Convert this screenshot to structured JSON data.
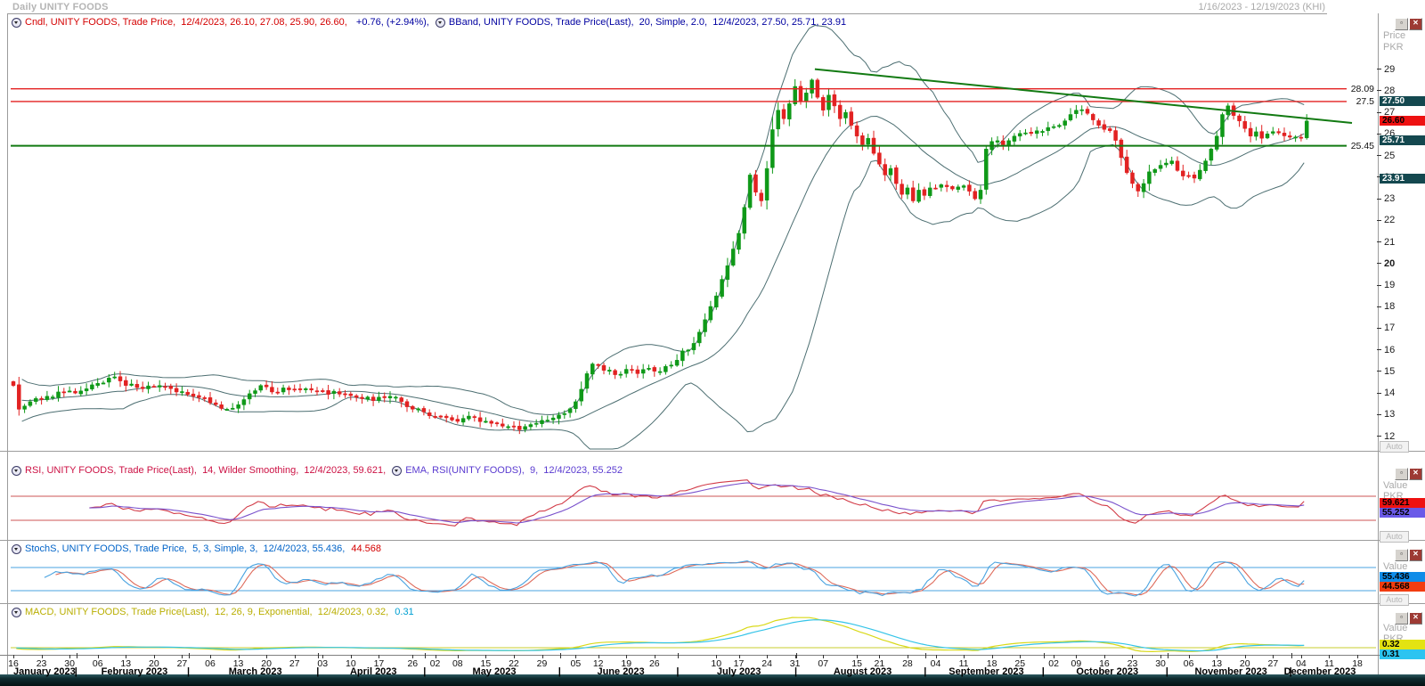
{
  "window": {
    "title": "Daily UNITY FOODS",
    "date_range": "1/16/2023 - 12/19/2023 (KHI)"
  },
  "axis": {
    "price_label": "Price",
    "value_label": "Value",
    "currency": "PKR",
    "auto_label": "Auto"
  },
  "icons": {
    "collapse": "indicator-collapse-icon",
    "restore": "restore-icon",
    "close": "close-icon"
  },
  "panels": {
    "main": {
      "candle_text": "Cndl, UNITY FOODS, Trade Price,  12/4/2023, 26.10, 27.08, 25.90, 26.60,  ",
      "change_text": "+0.76, (+2.94%), ",
      "bband_text": "BBand, UNITY FOODS, Trade Price(Last),  20, Simple, 2.0,  12/4/2023, 27.50, 25.71, 23.91",
      "badges": [
        {
          "text": "27.50",
          "value": 27.5,
          "bg": "#14484f",
          "fg": "#ffffff"
        },
        {
          "text": "26.60",
          "value": 26.6,
          "bg": "#ee1111",
          "fg": "#000000"
        },
        {
          "text": "25.71",
          "value": 25.71,
          "bg": "#14484f",
          "fg": "#ffffff"
        },
        {
          "text": "23.91",
          "value": 23.91,
          "bg": "#14484f",
          "fg": "#ffffff"
        }
      ]
    },
    "rsi": {
      "rsi_text": "RSI, UNITY FOODS, Trade Price(Last),  14, Wilder Smoothing,  12/4/2023, 59.621, ",
      "ema_text": "EMA, RSI(UNITY FOODS),  9,  12/4/2023, 55.252",
      "badges": [
        {
          "text": "59.621",
          "value": 59.621,
          "bg": "#ee1111",
          "fg": "#000000"
        },
        {
          "text": "55.252",
          "value": 55.252,
          "bg": "#6a5ae8",
          "fg": "#000000"
        }
      ]
    },
    "stoch": {
      "stoch_text": "StochS, UNITY FOODS, Trade Price,  5, 3, Simple, 3,  12/4/2023, 55.436, ",
      "d_value_text": "44.568",
      "badges": [
        {
          "text": "55.436",
          "value": 55.436,
          "bg": "#0f8ce8",
          "fg": "#000000"
        },
        {
          "text": "44.568",
          "value": 44.568,
          "bg": "#f23d10",
          "fg": "#000000"
        }
      ]
    },
    "macd": {
      "macd_text": "MACD, UNITY FOODS, Trade Price(Last),  12, 26, 9, Exponential,  12/4/2023, 0.32, ",
      "signal_value_text": "0.31",
      "badges": [
        {
          "text": "0.32",
          "value": 0.32,
          "bg": "#e3e312",
          "fg": "#000000"
        },
        {
          "text": "0.31",
          "value": 0.31,
          "bg": "#2cc4f0",
          "fg": "#000000"
        }
      ]
    }
  },
  "chart_data": {
    "type": "candlestick",
    "symbol": "UNITY FOODS",
    "interval": "Daily",
    "currency": "PKR",
    "x_range": {
      "start_label": "1/16/2023",
      "end_label": "12/19/2023",
      "slots": 242,
      "last_candle_slot": 230
    },
    "price_axis": {
      "min": 11.45,
      "max": 30.8,
      "ticks": [
        29,
        28,
        27,
        26,
        25,
        24,
        23,
        22,
        21,
        20,
        19,
        18,
        17,
        16,
        15,
        14,
        13,
        12
      ],
      "bold_ticks": [
        20
      ]
    },
    "last_candle": {
      "date": "12/4/2023",
      "open": 26.1,
      "high": 27.08,
      "low": 25.9,
      "close": 26.6,
      "change": 0.76,
      "change_pct": 2.94
    },
    "months": [
      [
        "January 2023",
        0,
        12
      ],
      [
        "February 2023",
        12,
        32
      ],
      [
        "March 2023",
        32,
        55
      ],
      [
        "April 2023",
        55,
        74
      ],
      [
        "May 2023",
        74,
        98
      ],
      [
        "June 2023",
        98,
        119
      ],
      [
        "July 2023",
        119,
        140
      ],
      [
        "August 2023",
        140,
        163
      ],
      [
        "September 2023",
        163,
        184
      ],
      [
        "October 2023",
        184,
        206
      ],
      [
        "November 2023",
        206,
        228
      ],
      [
        "December 2023",
        228,
        242
      ]
    ],
    "day_ticks": [
      [
        "16",
        0
      ],
      [
        "23",
        5
      ],
      [
        "30",
        10
      ],
      [
        "06",
        15
      ],
      [
        "13",
        20
      ],
      [
        "20",
        25
      ],
      [
        "27",
        30
      ],
      [
        "06",
        35
      ],
      [
        "13",
        40
      ],
      [
        "20",
        45
      ],
      [
        "27",
        50
      ],
      [
        "03",
        55
      ],
      [
        "10",
        60
      ],
      [
        "17",
        65
      ],
      [
        "26",
        71
      ],
      [
        "02",
        75
      ],
      [
        "08",
        79
      ],
      [
        "15",
        84
      ],
      [
        "22",
        89
      ],
      [
        "29",
        94
      ],
      [
        "05",
        100
      ],
      [
        "12",
        104
      ],
      [
        "19",
        109
      ],
      [
        "26",
        114
      ],
      [
        "10",
        125
      ],
      [
        "17",
        129
      ],
      [
        "24",
        134
      ],
      [
        "31",
        139
      ],
      [
        "07",
        144
      ],
      [
        "15",
        150
      ],
      [
        "21",
        154
      ],
      [
        "28",
        159
      ],
      [
        "04",
        164
      ],
      [
        "11",
        169
      ],
      [
        "18",
        174
      ],
      [
        "25",
        179
      ],
      [
        "02",
        185
      ],
      [
        "09",
        189
      ],
      [
        "16",
        194
      ],
      [
        "23",
        199
      ],
      [
        "30",
        204
      ],
      [
        "06",
        209
      ],
      [
        "13",
        214
      ],
      [
        "20",
        219
      ],
      [
        "27",
        224
      ],
      [
        "04",
        229
      ],
      [
        "11",
        234
      ],
      [
        "18",
        239
      ]
    ],
    "close_anchors": [
      [
        0,
        14.35
      ],
      [
        1,
        13.25
      ],
      [
        3,
        13.6
      ],
      [
        6,
        13.85
      ],
      [
        9,
        14.05
      ],
      [
        12,
        14.1
      ],
      [
        15,
        14.45
      ],
      [
        18,
        14.75
      ],
      [
        20,
        14.35
      ],
      [
        23,
        14.2
      ],
      [
        26,
        14.35
      ],
      [
        29,
        14.05
      ],
      [
        32,
        13.85
      ],
      [
        35,
        13.55
      ],
      [
        38,
        13.25
      ],
      [
        41,
        13.7
      ],
      [
        44,
        14.35
      ],
      [
        46,
        14.05
      ],
      [
        49,
        14.15
      ],
      [
        52,
        14.2
      ],
      [
        55,
        14.1
      ],
      [
        58,
        13.95
      ],
      [
        61,
        13.8
      ],
      [
        64,
        13.65
      ],
      [
        67,
        13.85
      ],
      [
        69,
        13.6
      ],
      [
        71,
        13.25
      ],
      [
        74,
        12.95
      ],
      [
        78,
        12.75
      ],
      [
        82,
        12.9
      ],
      [
        85,
        12.6
      ],
      [
        88,
        12.45
      ],
      [
        90,
        12.3
      ],
      [
        93,
        12.6
      ],
      [
        96,
        12.85
      ],
      [
        98,
        13.05
      ],
      [
        100,
        13.6
      ],
      [
        102,
        14.9
      ],
      [
        103,
        15.35
      ],
      [
        105,
        15.05
      ],
      [
        107,
        14.85
      ],
      [
        109,
        15.1
      ],
      [
        111,
        14.9
      ],
      [
        113,
        15.15
      ],
      [
        115,
        15.0
      ],
      [
        117,
        15.3
      ],
      [
        119,
        15.95
      ],
      [
        121,
        16.3
      ],
      [
        123,
        17.4
      ],
      [
        125,
        18.5
      ],
      [
        127,
        19.9
      ],
      [
        129,
        21.4
      ],
      [
        130,
        22.6
      ],
      [
        131,
        24.1
      ],
      [
        132,
        23.3
      ],
      [
        133,
        22.9
      ],
      [
        134,
        24.4
      ],
      [
        135,
        26.2
      ],
      [
        136,
        27.1
      ],
      [
        137,
        26.7
      ],
      [
        138,
        27.4
      ],
      [
        139,
        28.2
      ],
      [
        140,
        27.5
      ],
      [
        141,
        27.9
      ],
      [
        142,
        28.5
      ],
      [
        143,
        27.7
      ],
      [
        144,
        27.1
      ],
      [
        145,
        27.8
      ],
      [
        146,
        27.3
      ],
      [
        147,
        26.7
      ],
      [
        148,
        27.0
      ],
      [
        149,
        26.4
      ],
      [
        150,
        25.9
      ],
      [
        151,
        25.5
      ],
      [
        152,
        25.8
      ],
      [
        153,
        25.1
      ],
      [
        154,
        24.6
      ],
      [
        155,
        24.1
      ],
      [
        156,
        24.4
      ],
      [
        157,
        23.7
      ],
      [
        158,
        23.2
      ],
      [
        159,
        23.5
      ],
      [
        160,
        22.9
      ],
      [
        161,
        23.4
      ],
      [
        162,
        23.15
      ],
      [
        163,
        23.5
      ],
      [
        165,
        23.65
      ],
      [
        167,
        23.45
      ],
      [
        169,
        23.6
      ],
      [
        171,
        23.0
      ],
      [
        172,
        23.4
      ],
      [
        173,
        25.3
      ],
      [
        174,
        25.65
      ],
      [
        176,
        25.5
      ],
      [
        178,
        25.9
      ],
      [
        180,
        26.05
      ],
      [
        182,
        26.15
      ],
      [
        184,
        26.3
      ],
      [
        186,
        26.4
      ],
      [
        188,
        26.9
      ],
      [
        189,
        27.1
      ],
      [
        191,
        26.95
      ],
      [
        193,
        26.4
      ],
      [
        195,
        26.15
      ],
      [
        196,
        25.7
      ],
      [
        197,
        24.9
      ],
      [
        198,
        24.2
      ],
      [
        199,
        23.7
      ],
      [
        200,
        23.35
      ],
      [
        202,
        24.25
      ],
      [
        204,
        24.55
      ],
      [
        206,
        24.75
      ],
      [
        208,
        24.05
      ],
      [
        210,
        23.95
      ],
      [
        212,
        24.75
      ],
      [
        213,
        25.3
      ],
      [
        214,
        25.9
      ],
      [
        215,
        26.9
      ],
      [
        216,
        27.3
      ],
      [
        217,
        26.85
      ],
      [
        218,
        26.6
      ],
      [
        219,
        26.25
      ],
      [
        220,
        25.9
      ],
      [
        221,
        26.1
      ],
      [
        222,
        25.8
      ],
      [
        223,
        26.0
      ],
      [
        225,
        26.05
      ],
      [
        227,
        25.85
      ],
      [
        229,
        25.84
      ],
      [
        230,
        26.6
      ]
    ],
    "noise": {
      "amplitude": 0.13,
      "seed": 7
    },
    "levels": [
      {
        "value": 28.09,
        "label": "28.09",
        "color": "#e42020",
        "width": 1.4
      },
      {
        "value": 27.5,
        "label": "27.5",
        "color": "#e42020",
        "width": 1.4
      },
      {
        "value": 25.45,
        "label": "25.45",
        "color": "#127a12",
        "width": 2
      }
    ],
    "trendline": {
      "from_slot": 143,
      "from_price": 29.0,
      "to_slot": 242,
      "to_price": 26.42,
      "color": "#127a12"
    },
    "bollinger": {
      "period": 20,
      "stdev": 2.0,
      "last": {
        "upper": 27.5,
        "middle": 25.71,
        "lower": 23.91
      }
    },
    "indicators": {
      "rsi": {
        "period": 14,
        "smoothing": "Wilder Smoothing",
        "last": 59.621,
        "ema_period": 9,
        "ema_last": 55.252,
        "levels": [
          70,
          30
        ]
      },
      "stoch": {
        "k_period": 5,
        "slowing": 3,
        "d_period": 3,
        "method": "Simple",
        "last_k": 55.436,
        "last_d": 44.568,
        "levels": [
          80,
          20
        ]
      },
      "macd": {
        "fast": 12,
        "slow": 26,
        "signal": 9,
        "method": "Exponential",
        "last": 0.32,
        "signal_last": 0.31,
        "levels": [
          0
        ]
      }
    }
  }
}
